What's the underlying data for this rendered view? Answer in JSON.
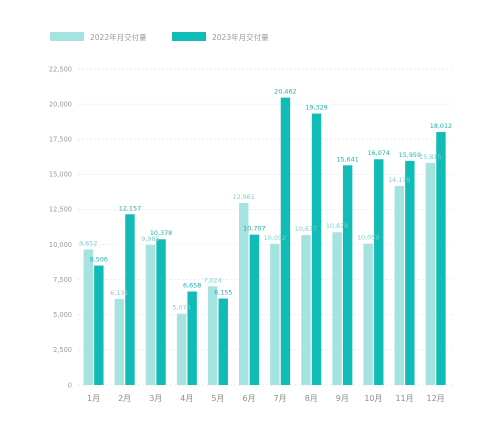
{
  "colors": {
    "series_2022": "#a5e3e1",
    "series_2023": "#12bcb6",
    "label_2022": "#7fcfcc",
    "label_2023": "#19b3ad"
  },
  "chart_data": {
    "type": "bar",
    "categories": [
      "1月",
      "2月",
      "3月",
      "4月",
      "5月",
      "6月",
      "7月",
      "8月",
      "9月",
      "10月",
      "11月",
      "12月"
    ],
    "series": [
      {
        "name": "2022年月交付量",
        "values": [
          9652,
          6131,
          9985,
          5074,
          7024,
          12961,
          10052,
          10677,
          10878,
          10059,
          14178,
          15815
        ],
        "labels": [
          "9,652",
          "6,131",
          "9,985",
          "5,074",
          "7,024",
          "12,961",
          "10,052",
          "10,677",
          "10,878",
          "10,059",
          "14,178",
          "15,815"
        ]
      },
      {
        "name": "2023年月交付量",
        "values": [
          8506,
          12157,
          10378,
          6658,
          6155,
          10707,
          20462,
          19329,
          15641,
          16074,
          15959,
          18012
        ],
        "labels": [
          "8,506",
          "12,157",
          "10,378",
          "6,658",
          "6,155",
          "10,707",
          "20,462",
          "19,329",
          "15,641",
          "16,074",
          "15,959",
          "18,012"
        ]
      }
    ],
    "ylim": [
      0,
      22500
    ],
    "yticks": [
      0,
      2500,
      5000,
      7500,
      10000,
      12500,
      15000,
      17500,
      20000,
      22500
    ],
    "ytick_labels": [
      "0",
      "2,500",
      "5,000",
      "7,500",
      "10,000",
      "12,500",
      "15,000",
      "17,500",
      "20,000",
      "22,500"
    ],
    "grid": true,
    "legend_position": "top-left"
  }
}
